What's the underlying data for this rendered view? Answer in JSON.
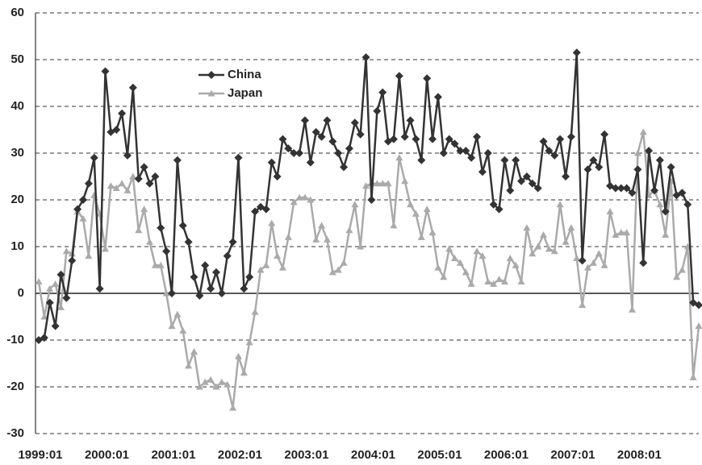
{
  "chart_data": {
    "type": "line",
    "categories": [
      "1999:01",
      null,
      null,
      null,
      null,
      null,
      null,
      null,
      null,
      null,
      null,
      null,
      "2000:01",
      null,
      null,
      null,
      null,
      null,
      null,
      null,
      null,
      null,
      null,
      null,
      "2001:01",
      null,
      null,
      null,
      null,
      null,
      null,
      null,
      null,
      null,
      null,
      null,
      "2002:01",
      null,
      null,
      null,
      null,
      null,
      null,
      null,
      null,
      null,
      null,
      null,
      "2003:01",
      null,
      null,
      null,
      null,
      null,
      null,
      null,
      null,
      null,
      null,
      null,
      "2004:01",
      null,
      null,
      null,
      null,
      null,
      null,
      null,
      null,
      null,
      null,
      null,
      "2005:01",
      null,
      null,
      null,
      null,
      null,
      null,
      null,
      null,
      null,
      null,
      null,
      "2006:01",
      null,
      null,
      null,
      null,
      null,
      null,
      null,
      null,
      null,
      null,
      null,
      "2007:01",
      null,
      null,
      null,
      null,
      null,
      null,
      null,
      null,
      null,
      null,
      null,
      "2008:01",
      null,
      null,
      null,
      null,
      null,
      null,
      null,
      null,
      null,
      null,
      null
    ],
    "series": [
      {
        "name": "China",
        "color": "#333333",
        "marker": "diamond",
        "values": [
          -10,
          -9.5,
          -2,
          -7,
          4,
          -1,
          7,
          18,
          20,
          23.5,
          29,
          1,
          47.5,
          34.5,
          35,
          38.5,
          29.5,
          44,
          24.5,
          27,
          23.5,
          25,
          14,
          9,
          0,
          28.5,
          14.5,
          11,
          3.5,
          -0.5,
          6,
          1,
          4.5,
          0,
          8,
          11,
          29,
          1,
          3.5,
          17.5,
          18.5,
          18,
          28,
          25,
          33,
          31,
          30,
          30,
          37,
          28,
          34.5,
          33.5,
          37,
          32.5,
          30,
          27,
          31,
          36.5,
          34,
          50.5,
          20,
          39,
          43,
          32.5,
          33,
          46.5,
          33.5,
          37,
          33,
          28.5,
          46,
          33,
          42,
          30,
          33,
          32,
          30.5,
          30.5,
          29,
          33.5,
          26,
          30,
          19,
          18,
          28.5,
          22,
          28.5,
          24,
          25,
          23.5,
          22.5,
          32.5,
          30.5,
          29.5,
          33,
          25,
          33.5,
          51.5,
          7,
          26.5,
          28.5,
          27,
          34,
          23,
          22.5,
          22.5,
          22.5,
          21.5,
          26.5,
          6.5,
          30.5,
          22,
          28.5,
          17.5,
          27,
          21,
          21.5,
          19,
          -2,
          -2.5
        ]
      },
      {
        "name": "Japan",
        "color": "#aaaaaa",
        "marker": "triangle",
        "values": [
          2.5,
          -5,
          1,
          2,
          -3,
          9,
          8.5,
          17.5,
          16,
          8,
          21,
          17,
          9.5,
          23,
          22.5,
          23.5,
          22,
          25,
          13.5,
          18,
          11,
          6,
          6,
          0,
          -7,
          -4.5,
          -8,
          -15.5,
          -12.5,
          -20,
          -19,
          -18.5,
          -20,
          -19,
          -19.5,
          -24.5,
          -13.5,
          -17,
          -10.5,
          -4,
          5,
          6,
          15,
          8,
          5.5,
          12,
          19.5,
          20.5,
          20.5,
          20,
          11.5,
          14.5,
          11.5,
          4.5,
          5,
          6.5,
          13.5,
          19,
          10,
          23,
          23.5,
          23.5,
          23.5,
          23.5,
          14.5,
          29,
          24,
          19,
          17,
          12,
          18,
          13,
          5.5,
          3.5,
          9.5,
          7.5,
          6.5,
          4.5,
          2,
          9,
          8,
          2.5,
          2,
          3,
          2.5,
          7.5,
          6,
          2.5,
          14,
          8.5,
          10,
          12.5,
          9.5,
          9,
          19,
          11,
          14,
          7.5,
          -2.5,
          5.5,
          6.5,
          8.5,
          6,
          17.5,
          12.5,
          13,
          13,
          -3.5,
          30,
          34.5,
          21,
          22,
          19,
          12.5,
          24,
          3.5,
          5,
          10,
          -18,
          -7
        ]
      }
    ],
    "ylim": [
      -30,
      60
    ],
    "yticks": [
      -30,
      -20,
      -10,
      0,
      10,
      20,
      30,
      40,
      50,
      60
    ],
    "grid": true,
    "legend": "upper left"
  }
}
